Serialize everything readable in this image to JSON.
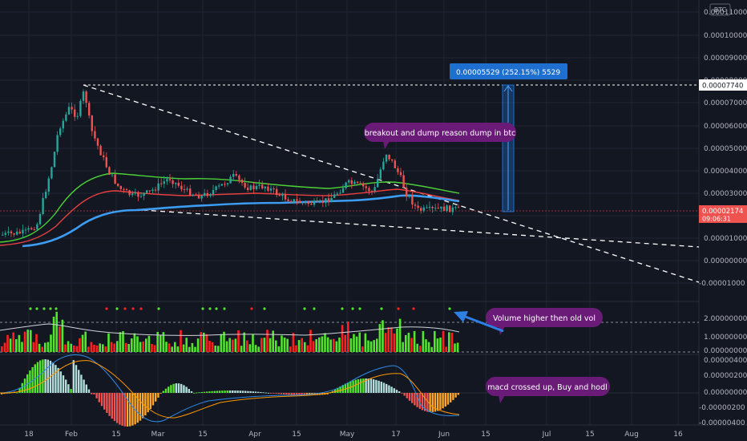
{
  "header": {
    "currency_badge": "BTC"
  },
  "colors": {
    "background": "#131722",
    "grid": "#1f2433",
    "bull": "#26a69a",
    "bear": "#ef5350",
    "bright_green": "#52e52b",
    "bright_red": "#ff2020",
    "ema_green": "#4cd137",
    "ema_red": "#e84040",
    "ema_blue": "#3d9df2",
    "callout_purple": "#6a1b78",
    "measure_blue": "#1e6fd0",
    "arrow_blue": "#2e7fe3"
  },
  "price_axis": {
    "labels": [
      "0.00011000",
      "0.00010000",
      "0.00009000",
      "0.00008000",
      "0.00007000",
      "0.00006000",
      "0.00005000",
      "0.00004000",
      "0.00003000",
      "0.00002000",
      "0.00001000",
      "0.00000000",
      "-0.00001000"
    ],
    "high_marker": "0.00007740",
    "current_price": "0.00002174",
    "countdown": "09:06:31"
  },
  "volume_axis": {
    "labels": [
      "2.00000000",
      "1.00000000",
      "0.00000000"
    ]
  },
  "macd_axis": {
    "labels": [
      "0.00000400",
      "0.00000200",
      "0.00000000",
      "-0.00000200",
      "-0.00000400"
    ]
  },
  "time_axis": {
    "labels": [
      "18",
      "Feb",
      "15",
      "Mar",
      "15",
      "Apr",
      "15",
      "May",
      "17",
      "Jun",
      "15",
      "Jul",
      "15",
      "Aug",
      "16"
    ]
  },
  "annotations": {
    "measure_label": "0.00005529 (252.15%) 5529",
    "breakout_note": "breakout and dump reason dump in btc",
    "volume_note": "Volume higher then old vol",
    "macd_note": "macd crossed up, Buy and hodl"
  },
  "chart_data": {
    "type": "candlestick",
    "title": "",
    "x": [
      "Jan 18",
      "Feb 1",
      "Feb 15",
      "Mar 1",
      "Mar 15",
      "Apr 1",
      "Apr 15",
      "May 1",
      "May 17",
      "Jun 1",
      "Jun 15",
      "Jul 1",
      "Jul 15",
      "Aug 1",
      "Aug 16"
    ],
    "ylim": [
      -1.1e-05,
      0.000115
    ],
    "price_series": {
      "name": "",
      "x": [
        "Jan 10",
        "Jan 20",
        "Jan 26",
        "Feb 5",
        "Feb 8",
        "Feb 15",
        "Mar 1",
        "Mar 15",
        "Apr 1",
        "Apr 15",
        "May 1",
        "May 10",
        "May 15",
        "May 20",
        "May 25",
        "Jun 4"
      ],
      "close": [
        5e-07,
        3e-06,
        4.8e-05,
        6e-05,
        7.7e-05,
        4e-05,
        3e-05,
        2.5e-05,
        3.1e-05,
        2.8e-05,
        3.6e-05,
        4.9e-05,
        3.8e-05,
        2e-05,
        2.2e-05,
        2.1e-05
      ]
    },
    "all_time_high": 7.74e-05,
    "last_price": 2.174e-05,
    "measurement": {
      "value": 5.529e-05,
      "percent": 252.15,
      "ticks": 5529
    },
    "volume": {
      "ylim": [
        0,
        2.6
      ],
      "reference_level": 1.75
    },
    "macd": {
      "ylim": [
        -4.5e-06,
        4.5e-06
      ]
    }
  }
}
